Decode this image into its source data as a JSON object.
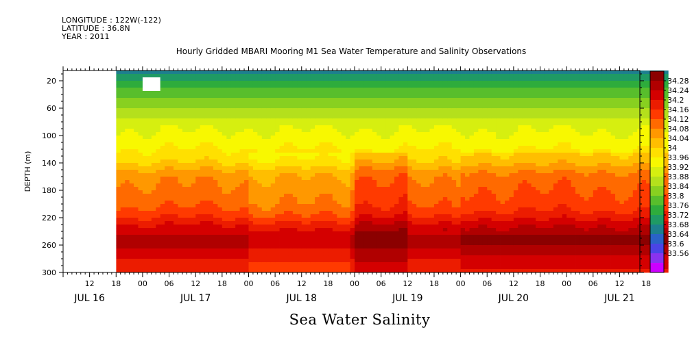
{
  "header": {
    "longitude": "LONGITUDE : 122W(-122)",
    "latitude": "LATITUDE : 36.8N",
    "year": "YEAR : 2011",
    "title": "Hourly Gridded MBARI Mooring M1 Sea Water Temperature and Salinity Observations"
  },
  "footer": {
    "title": "Sea Water Salinity"
  },
  "chart_data": {
    "type": "heatmap",
    "title": "Hourly Gridded MBARI Mooring M1 Sea Water Temperature and Salinity Observations",
    "ylabel": "DEPTH (m)",
    "xlabel": "",
    "ylim": [
      300,
      5
    ],
    "y_ticks": [
      20,
      60,
      100,
      140,
      180,
      220,
      260,
      300
    ],
    "x_range_hours": [
      "JUL 16 06:00",
      "JUL 21 23:00"
    ],
    "x_hour_ticks": [
      "12",
      "18",
      "00",
      "06",
      "12",
      "18",
      "00",
      "06",
      "12",
      "18",
      "00",
      "06",
      "12",
      "18",
      "00",
      "06",
      "12",
      "18",
      "00",
      "06",
      "12",
      "18"
    ],
    "x_date_labels": [
      "JUL 16",
      "JUL 17",
      "JUL 18",
      "JUL 19",
      "JUL 20",
      "JUL 21"
    ],
    "colorbar": {
      "levels": [
        "34.28",
        "34.24",
        "34.2",
        "34.16",
        "34.12",
        "34.08",
        "34.04",
        "34",
        "33.96",
        "33.92",
        "33.88",
        "33.84",
        "33.8",
        "33.76",
        "33.72",
        "33.68",
        "33.64",
        "33.6",
        "33.56"
      ],
      "colors": [
        "#8b0000",
        "#b00000",
        "#d40000",
        "#ec1c00",
        "#ff3a00",
        "#ff6a00",
        "#ff9800",
        "#ffbe00",
        "#ffe000",
        "#f8f800",
        "#d6ef10",
        "#b4e01c",
        "#88d020",
        "#58be2c",
        "#2eac3c",
        "#1f9a64",
        "#1d7f8e",
        "#2a62c8",
        "#4a44e6",
        "#8a32ee",
        "#cc00ff"
      ]
    },
    "profile_depth_m": [
      5,
      15,
      25,
      35,
      45,
      55,
      65,
      80,
      100,
      115,
      130,
      140,
      150,
      160,
      180,
      200,
      210,
      220,
      230,
      240,
      250,
      260,
      270,
      280,
      290,
      300
    ],
    "profile_salinity": [
      33.66,
      33.7,
      33.74,
      33.78,
      33.8,
      33.82,
      33.86,
      33.9,
      33.93,
      33.95,
      33.98,
      34.0,
      34.04,
      34.07,
      34.09,
      34.11,
      34.13,
      34.16,
      34.2,
      34.23,
      34.26,
      34.25,
      34.22,
      34.2,
      34.18,
      34.16
    ],
    "time_periods": [
      {
        "from": "JUL 16 18:00",
        "to": "JUL 18 00:00",
        "halocline_shift": 0
      },
      {
        "from": "JUL 18 00:00",
        "to": "JUL 18 23:00",
        "halocline_shift": -0.03
      },
      {
        "from": "JUL 19 00:00",
        "to": "JUL 19 12:00",
        "halocline_shift": 0.05
      },
      {
        "from": "JUL 19 12:00",
        "to": "JUL 20 00:00",
        "halocline_shift": 0
      },
      {
        "from": "JUL 20 00:00",
        "to": "JUL 21 23:00",
        "halocline_shift": 0.03
      }
    ],
    "missing_data": [
      {
        "from": "JUL 16 06:00",
        "to": "JUL 16 18:00",
        "depth_from": 5,
        "depth_to": 300
      },
      {
        "from": "JUL 17 00:00",
        "to": "JUL 17 04:00",
        "depth_from": 15,
        "depth_to": 35
      }
    ]
  }
}
